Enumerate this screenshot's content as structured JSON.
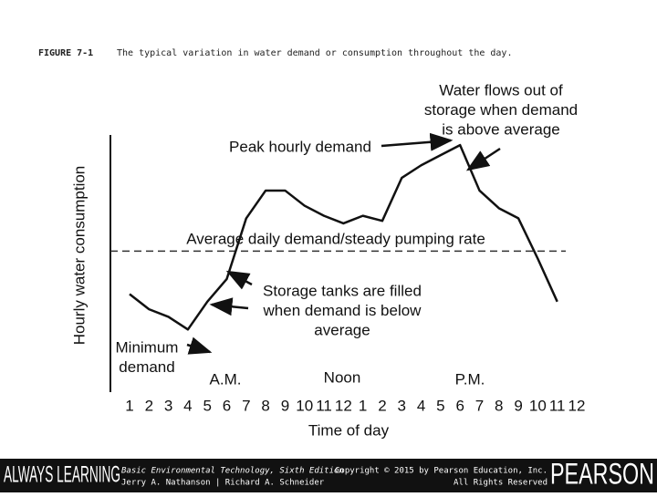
{
  "header": {
    "figure": "FIGURE 7-1",
    "caption": "The typical variation in water demand or consumption throughout the day."
  },
  "chart_data": {
    "type": "line",
    "y_label": "Hourly water consumption",
    "x_label": "Time of day",
    "categories": [
      "1",
      "2",
      "3",
      "4",
      "5",
      "6",
      "7",
      "8",
      "9",
      "10",
      "11",
      "12",
      "1",
      "2",
      "3",
      "4",
      "5",
      "6",
      "7",
      "8",
      "9",
      "10",
      "11",
      "12"
    ],
    "values": [
      37,
      31,
      28,
      23,
      34,
      43,
      67,
      78,
      78,
      72,
      68,
      65,
      68,
      66,
      83,
      88,
      92,
      96,
      78,
      71,
      67,
      51,
      34,
      null
    ],
    "color": "#111111",
    "ylim": [
      0,
      100
    ],
    "average": {
      "label": "Average daily demand/steady pumping rate",
      "value": 54
    },
    "period_labels": [
      "A.M.",
      "Noon",
      "P.M."
    ],
    "annotations": [
      [
        "Water flows out of",
        "storage when demand",
        "is above average"
      ],
      [
        "Peak hourly demand"
      ],
      [
        "Storage tanks are filled",
        "when demand is below",
        "average"
      ],
      [
        "Minimum",
        "demand"
      ]
    ]
  },
  "footer": {
    "brand_left": "ALWAYS LEARNING",
    "book": "Basic Environmental Technology, Sixth Edition",
    "authors": "Jerry A. Nathanson | Richard A. Schneider",
    "copyright": "Copyright © 2015 by Pearson Education, Inc.",
    "rights": "All Rights Reserved",
    "brand_right": "PEARSON"
  }
}
